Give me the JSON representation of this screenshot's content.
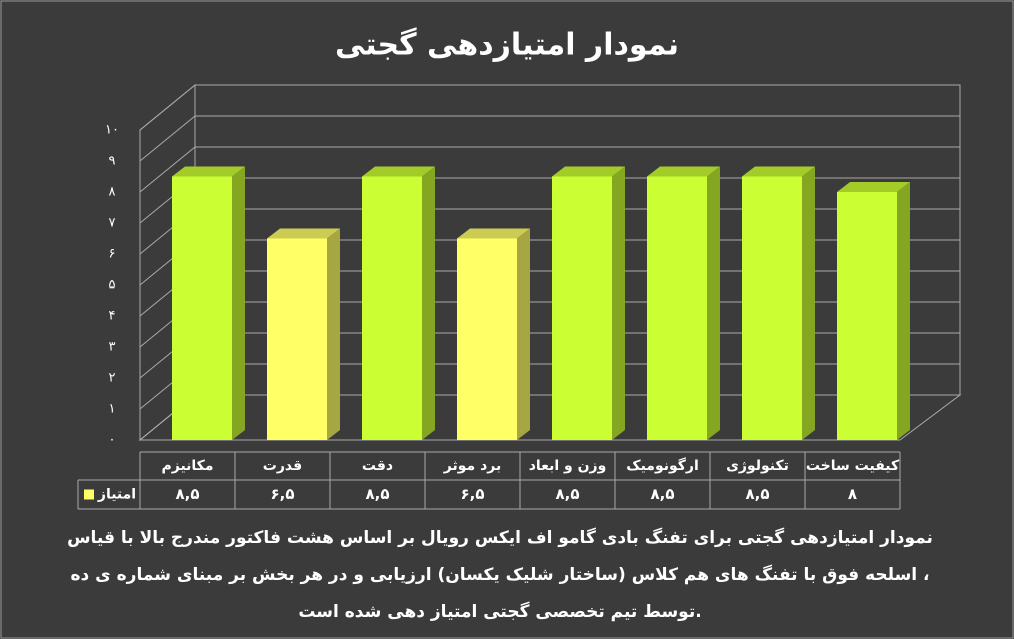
{
  "chart_data": {
    "type": "bar3d",
    "title": "نمودار امتیازدهی گجتی",
    "categories": [
      "مکانیزم",
      "قدرت",
      "دقت",
      "برد موثر",
      "وزن و ابعاد",
      "ارگونومیک",
      "تکنولوژی",
      "کیفیت ساخت"
    ],
    "series": [
      {
        "name": "امتیاز",
        "color": "#ffff66",
        "colors": [
          "#ccff33",
          "#ffff66",
          "#ccff33",
          "#ffff66",
          "#ccff33",
          "#ccff33",
          "#ccff33",
          "#ccff33"
        ],
        "values": [
          8.5,
          6.5,
          8.5,
          6.5,
          8.5,
          8.5,
          8.5,
          8
        ],
        "value_labels": [
          "۸,۵",
          "۶,۵",
          "۸,۵",
          "۶,۵",
          "۸,۵",
          "۸,۵",
          "۸,۵",
          "۸"
        ]
      }
    ],
    "ylim": [
      0,
      10
    ],
    "yticks": [
      {
        "value": 0,
        "label": "۰"
      },
      {
        "value": 1,
        "label": "۱"
      },
      {
        "value": 2,
        "label": "۲"
      },
      {
        "value": 3,
        "label": "۳"
      },
      {
        "value": 4,
        "label": "۴"
      },
      {
        "value": 5,
        "label": "۵"
      },
      {
        "value": 6,
        "label": "۶"
      },
      {
        "value": 7,
        "label": "۷"
      },
      {
        "value": 8,
        "label": "۸"
      },
      {
        "value": 9,
        "label": "۹"
      },
      {
        "value": 10,
        "label": "۱۰"
      }
    ],
    "grid": true,
    "caption": [
      "نمودار امتیازدهی گجتی برای تفنگ بادی گامو اف ایکس رویال بر  اساس هشت فاکتور مندرج بالا با قیاس",
      "اسلحه فوق با تفنگ های هم کلاس (ساختار شلیک یکسان) ارزیابی و در هر بخش بر مبنای شماره ی ده ،",
      "توسط تیم تخصصی گجتی امتیاز دهی شده است."
    ]
  }
}
